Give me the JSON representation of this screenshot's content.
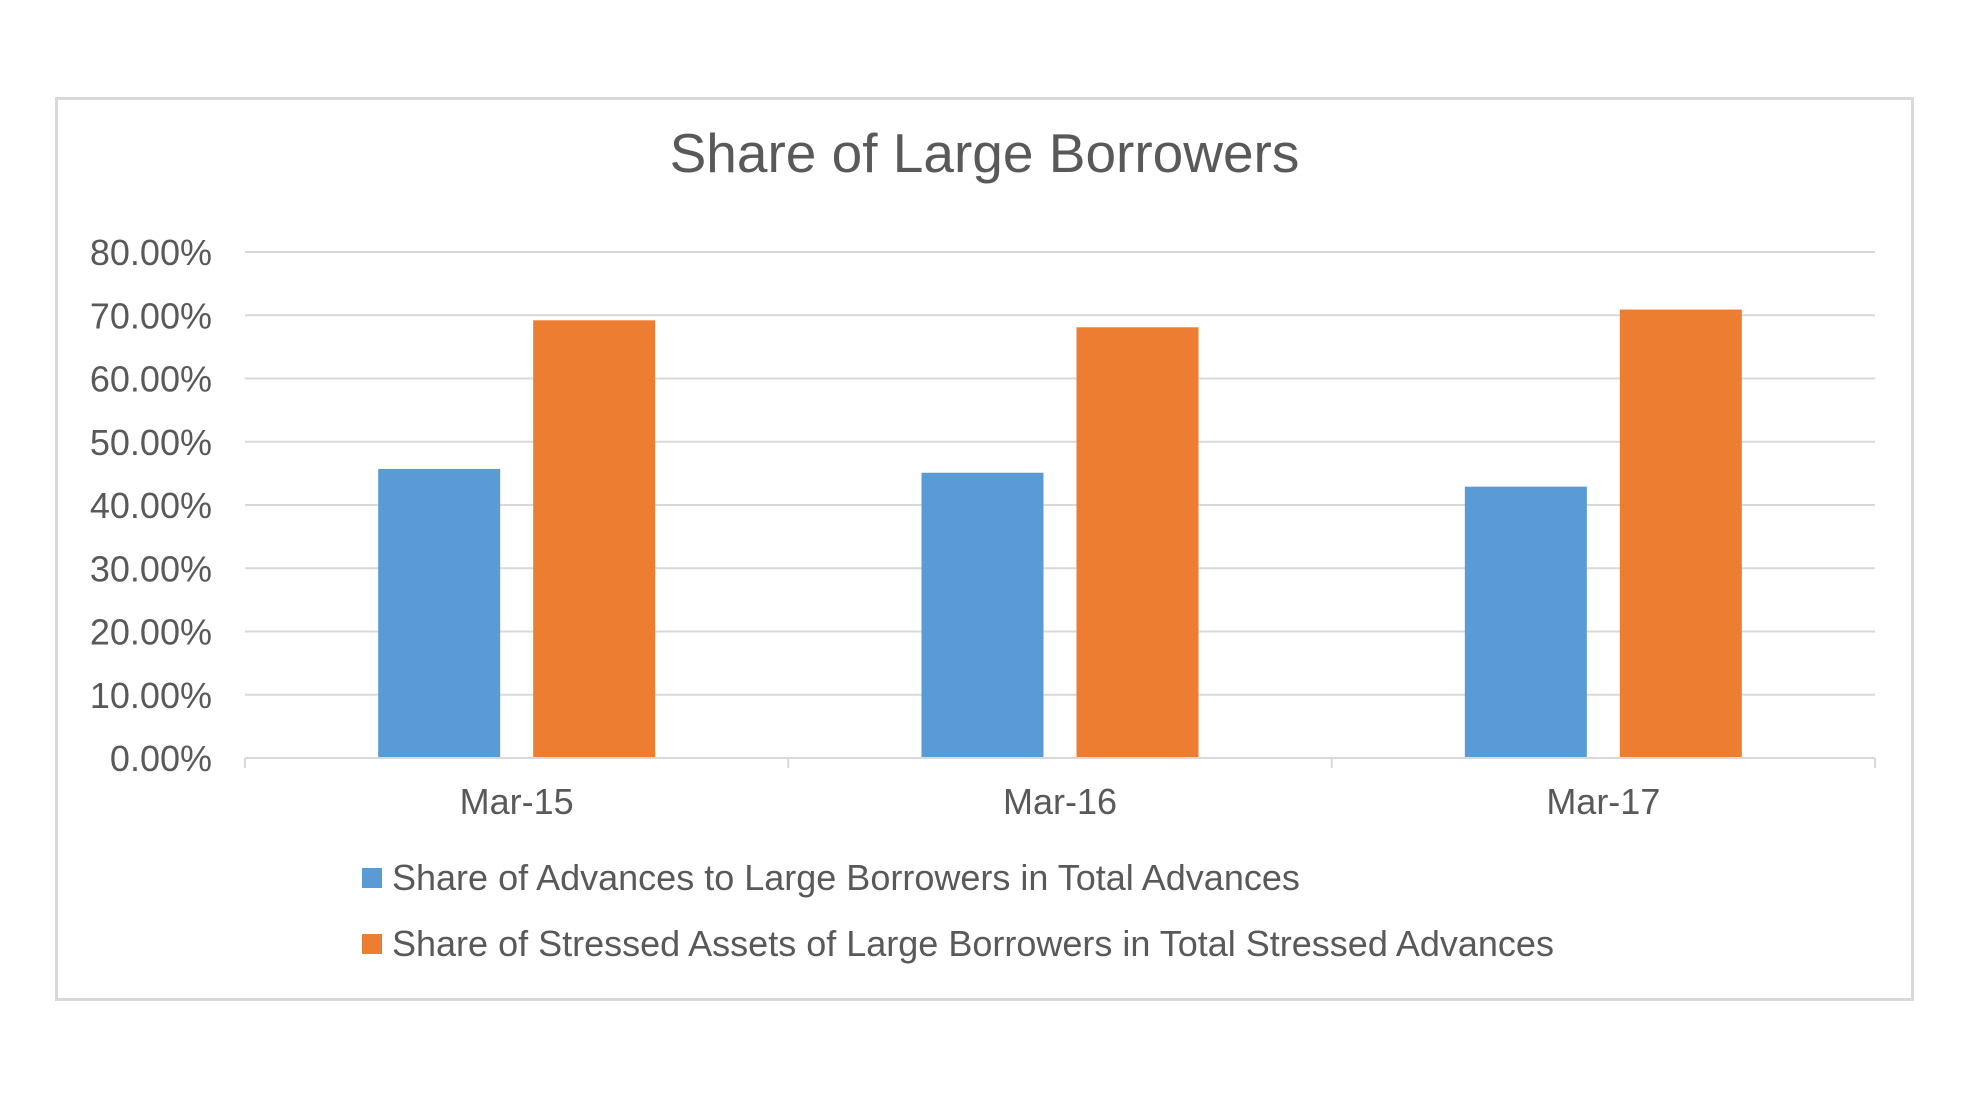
{
  "chart_data": {
    "type": "bar",
    "title": "Share of Large Borrowers",
    "xlabel": "",
    "ylabel": "",
    "categories": [
      "Mar-15",
      "Mar-16",
      "Mar-17"
    ],
    "series": [
      {
        "name": "Share of Advances to Large Borrowers in Total Advances",
        "values": [
          45.7,
          45.1,
          42.9
        ],
        "color": "#5b9bd5"
      },
      {
        "name": "Share of Stressed Assets of Large Borrowers in Total Stressed Advances",
        "values": [
          69.2,
          68.1,
          70.9
        ],
        "color": "#ed7d31"
      }
    ],
    "ylim": [
      0,
      80
    ],
    "yticks": [
      "0.00%",
      "10.00%",
      "20.00%",
      "30.00%",
      "40.00%",
      "50.00%",
      "60.00%",
      "70.00%",
      "80.00%"
    ],
    "grid": true,
    "legend_position": "bottom"
  }
}
